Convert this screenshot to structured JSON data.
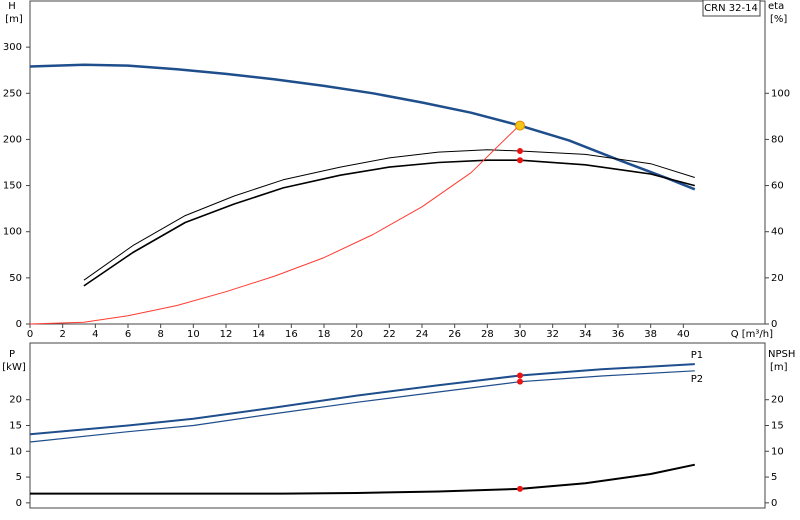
{
  "chart_data": [
    {
      "type": "line",
      "title": "CRN 32-14",
      "y_label": "H",
      "y_unit": "[m]",
      "y2_label": "eta",
      "y2_unit": "[%]",
      "x_label": "Q [m³/h]",
      "xlim": [
        0,
        45
      ],
      "xticks": [
        0,
        2,
        4,
        6,
        8,
        10,
        12,
        14,
        16,
        18,
        20,
        22,
        24,
        26,
        28,
        30,
        32,
        34,
        36,
        38,
        40
      ],
      "ylim": [
        0,
        350
      ],
      "yticks": [
        0,
        50,
        100,
        150,
        200,
        250,
        300
      ],
      "y2lim": [
        0,
        140
      ],
      "y2ticks": [
        0,
        20,
        40,
        60,
        80,
        100
      ],
      "series": [
        {
          "color": "#1f4e8c",
          "width": 2.5,
          "axis": "y",
          "x": [
            0,
            3.3,
            6,
            9,
            12,
            15,
            18,
            21,
            24,
            27,
            30,
            33,
            36,
            39,
            40.7
          ],
          "values": [
            279,
            281,
            280,
            276,
            271,
            265,
            258,
            250,
            240,
            229,
            215,
            199,
            178,
            158,
            146
          ]
        },
        {
          "color": "#000000",
          "width": 1,
          "axis": "y2",
          "x": [
            3.3,
            6.3,
            9.5,
            12.5,
            15.5,
            19,
            22,
            25,
            28,
            30,
            34,
            38,
            40.7
          ],
          "values": [
            19,
            34,
            47,
            55.5,
            62.5,
            68,
            72,
            74.5,
            75.5,
            75,
            73.5,
            69.5,
            63.5
          ]
        },
        {
          "color": "#000000",
          "width": 1.6,
          "axis": "y2",
          "x": [
            3.3,
            6.3,
            9.5,
            12.5,
            15.5,
            19,
            22,
            25,
            28,
            30,
            34,
            38,
            40.7
          ],
          "values": [
            16.5,
            31,
            44,
            52,
            59,
            64.5,
            68,
            70,
            71,
            71,
            69,
            65,
            60
          ]
        },
        {
          "color": "#ff3b30",
          "width": 1,
          "axis": "y",
          "x": [
            0,
            3.3,
            6,
            9,
            12,
            15,
            18,
            21,
            24,
            27,
            30
          ],
          "values": [
            0,
            2,
            9,
            20,
            35,
            52,
            72,
            97,
            127,
            164,
            216
          ]
        }
      ],
      "points": [
        {
          "x": 30,
          "y": 215,
          "axis": "y",
          "color": "#f5c518"
        },
        {
          "x": 30,
          "y": 75,
          "axis": "y2",
          "color": "#ee1111"
        },
        {
          "x": 30,
          "y": 71,
          "axis": "y2",
          "color": "#ee1111"
        }
      ]
    },
    {
      "type": "line",
      "y_label": "P",
      "y_unit": "[kW]",
      "y2_label": "NPSH",
      "y2_unit": "[m]",
      "xlim": [
        0,
        45
      ],
      "ylim": [
        -1,
        31
      ],
      "yticks": [
        0,
        5,
        10,
        15,
        20
      ],
      "y2lim": [
        -1,
        31
      ],
      "y2ticks": [
        0,
        5,
        10,
        15,
        20
      ],
      "series": [
        {
          "name": "P1",
          "color": "#1f4e8c",
          "width": 2,
          "axis": "y",
          "x": [
            0,
            6,
            10,
            15,
            20,
            25,
            30,
            35,
            40.7
          ],
          "values": [
            13.3,
            15,
            16.3,
            18.5,
            20.8,
            22.8,
            24.7,
            25.9,
            26.9
          ]
        },
        {
          "name": "P2",
          "color": "#1f4e8c",
          "width": 1.2,
          "axis": "y",
          "x": [
            0,
            6,
            10,
            15,
            20,
            25,
            30,
            35,
            40.7
          ],
          "values": [
            11.8,
            13.8,
            15,
            17.3,
            19.5,
            21.5,
            23.5,
            24.6,
            25.6
          ]
        },
        {
          "color": "#000000",
          "width": 2,
          "axis": "y2",
          "x": [
            0,
            15.5,
            20,
            25,
            30,
            34,
            38,
            40.7
          ],
          "values": [
            1.8,
            1.8,
            1.9,
            2.2,
            2.7,
            3.8,
            5.6,
            7.4
          ]
        }
      ],
      "points": [
        {
          "x": 30,
          "y": 24.7,
          "axis": "y",
          "color": "#ee1111"
        },
        {
          "x": 30,
          "y": 23.5,
          "axis": "y",
          "color": "#ee1111"
        },
        {
          "x": 30,
          "y": 2.7,
          "axis": "y2",
          "color": "#ee1111"
        }
      ]
    }
  ]
}
